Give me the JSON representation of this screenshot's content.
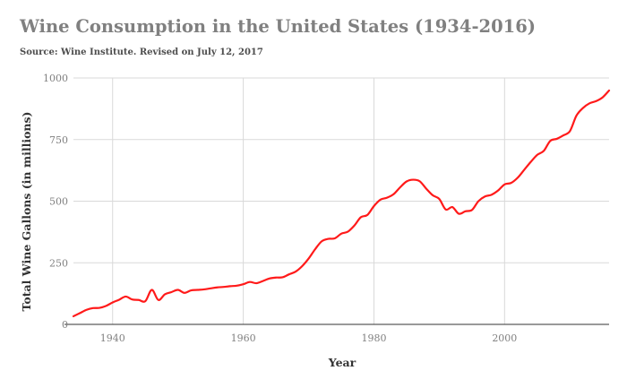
{
  "title": "Wine Consumption in the United States (1934-2016)",
  "subtitle": "Source: Wine Institute. Revised on July 12, 2017",
  "chart_data": {
    "type": "line",
    "title": "Wine Consumption in the United States (1934-2016)",
    "subtitle": "Source: Wine Institute. Revised on July 12, 2017",
    "xlabel": "Year",
    "ylabel": "Total Wine Gallons (in millions)",
    "xlim": [
      1934,
      2016
    ],
    "ylim": [
      0,
      1000
    ],
    "xticks": [
      1940,
      1960,
      1980,
      2000
    ],
    "yticks": [
      0,
      250,
      500,
      750,
      1000
    ],
    "grid": true,
    "legend": "none",
    "series": [
      {
        "color": "#ff1a1a",
        "x": [
          1934,
          1935,
          1936,
          1937,
          1938,
          1939,
          1940,
          1941,
          1942,
          1943,
          1944,
          1945,
          1946,
          1947,
          1948,
          1949,
          1950,
          1951,
          1952,
          1953,
          1954,
          1955,
          1956,
          1957,
          1958,
          1959,
          1960,
          1961,
          1962,
          1963,
          1964,
          1965,
          1966,
          1967,
          1968,
          1969,
          1970,
          1971,
          1972,
          1973,
          1974,
          1975,
          1976,
          1977,
          1978,
          1979,
          1980,
          1981,
          1982,
          1983,
          1984,
          1985,
          1986,
          1987,
          1988,
          1989,
          1990,
          1991,
          1992,
          1993,
          1994,
          1995,
          1996,
          1997,
          1998,
          1999,
          2000,
          2001,
          2002,
          2003,
          2004,
          2005,
          2006,
          2007,
          2008,
          2009,
          2010,
          2011,
          2012,
          2013,
          2014,
          2015,
          2016
        ],
        "y": [
          33,
          46,
          59,
          66,
          67,
          75,
          89,
          100,
          113,
          101,
          99,
          94,
          140,
          99,
          122,
          131,
          140,
          128,
          138,
          140,
          142,
          146,
          150,
          152,
          155,
          157,
          163,
          172,
          167,
          176,
          186,
          190,
          191,
          203,
          214,
          236,
          267,
          305,
          337,
          347,
          349,
          368,
          376,
          401,
          435,
          444,
          480,
          506,
          514,
          528,
          556,
          580,
          587,
          581,
          551,
          524,
          509,
          466,
          476,
          449,
          459,
          464,
          500,
          519,
          526,
          543,
          568,
          574,
          595,
          627,
          659,
          688,
          704,
          745,
          753,
          767,
          784,
          847,
          878,
          897,
          906,
          921,
          949
        ]
      }
    ]
  }
}
